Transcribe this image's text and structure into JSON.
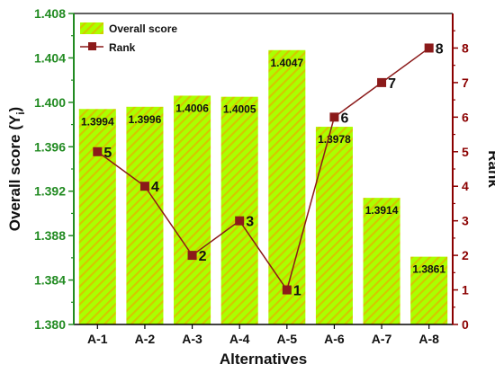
{
  "chart_data": {
    "type": "bar",
    "categories": [
      "A-1",
      "A-2",
      "A-3",
      "A-4",
      "A-5",
      "A-6",
      "A-7",
      "A-8"
    ],
    "series": [
      {
        "name": "Overall score",
        "type": "bar",
        "axis": "left",
        "values": [
          1.3994,
          1.3996,
          1.4006,
          1.4005,
          1.4047,
          1.3978,
          1.3914,
          1.3861
        ],
        "labels": [
          "1.3994",
          "1.3996",
          "1.4006",
          "1.4005",
          "1.4047",
          "1.3978",
          "1.3914",
          "1.3861"
        ],
        "color": "#aaff00",
        "hatch_color": "#d4c800"
      },
      {
        "name": "Rank",
        "type": "line",
        "axis": "right",
        "values": [
          5,
          4,
          2,
          3,
          1,
          6,
          7,
          8
        ],
        "labels": [
          "5",
          "4",
          "2",
          "3",
          "1",
          "6",
          "7",
          "8"
        ],
        "color": "#8b1a1a"
      }
    ],
    "xlabel": "Alternatives",
    "ylabel_left": "Overall score (Y",
    "ylabel_left_sub": "i",
    "ylabel_left_end": ")",
    "ylabel_right": "Rank",
    "ylim_left": [
      1.38,
      1.408
    ],
    "ylim_right": [
      0,
      9
    ],
    "yticks_left": [
      "1.380",
      "1.384",
      "1.388",
      "1.392",
      "1.396",
      "1.400",
      "1.404",
      "1.408"
    ],
    "yticks_right": [
      "0",
      "1",
      "2",
      "3",
      "4",
      "5",
      "6",
      "7",
      "8"
    ],
    "legend_position": "top-left",
    "left_axis_color": "#228b22",
    "right_axis_color": "#8b0000",
    "grid": false
  }
}
